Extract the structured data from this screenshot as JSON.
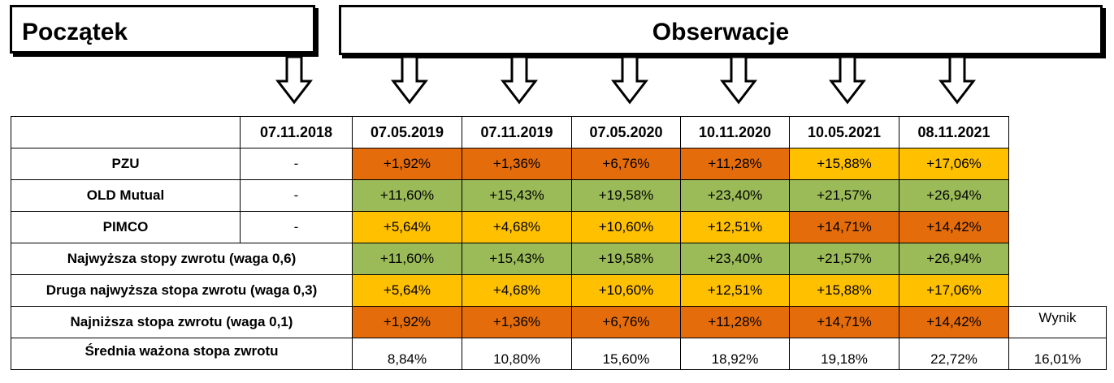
{
  "header": {
    "start_label": "Początek",
    "observations_label": "Obserwacje"
  },
  "table": {
    "columns": [
      "07.11.2018",
      "07.05.2019",
      "07.11.2019",
      "07.05.2020",
      "10.11.2020",
      "10.05.2021",
      "08.11.2021"
    ],
    "result_label": "Wynik",
    "rows": [
      {
        "label": "PZU",
        "values": [
          "-",
          "+1,92%",
          "+1,36%",
          "+6,76%",
          "+11,28%",
          "+15,88%",
          "+17,06%"
        ],
        "colors": [
          "",
          "orange",
          "orange",
          "orange",
          "orange",
          "yellow",
          "yellow"
        ]
      },
      {
        "label": "OLD Mutual",
        "values": [
          "-",
          "+11,60%",
          "+15,43%",
          "+19,58%",
          "+23,40%",
          "+21,57%",
          "+26,94%"
        ],
        "colors": [
          "",
          "green",
          "green",
          "green",
          "green",
          "green",
          "green"
        ]
      },
      {
        "label": "PIMCO",
        "values": [
          "-",
          "+5,64%",
          "+4,68%",
          "+10,60%",
          "+12,51%",
          "+14,71%",
          "+14,42%"
        ],
        "colors": [
          "",
          "yellow",
          "yellow",
          "yellow",
          "yellow",
          "orange",
          "orange"
        ]
      },
      {
        "label": "Najwyższa stopy zwrotu (waga 0,6)",
        "values": [
          "+11,60%",
          "+15,43%",
          "+19,58%",
          "+23,40%",
          "+21,57%",
          "+26,94%"
        ],
        "colors": [
          "green",
          "green",
          "green",
          "green",
          "green",
          "green"
        ]
      },
      {
        "label": "Druga najwyższa stopa zwrotu (waga 0,3)",
        "values": [
          "+5,64%",
          "+4,68%",
          "+10,60%",
          "+12,51%",
          "+15,88%",
          "+17,06%"
        ],
        "colors": [
          "yellow",
          "yellow",
          "yellow",
          "yellow",
          "yellow",
          "yellow"
        ]
      },
      {
        "label": "Najniższa stopa zwrotu (waga 0,1)",
        "values": [
          "+1,92%",
          "+1,36%",
          "+6,76%",
          "+11,28%",
          "+14,71%",
          "+14,42%"
        ],
        "colors": [
          "orange",
          "orange",
          "orange",
          "orange",
          "orange",
          "orange"
        ]
      }
    ],
    "weighted": {
      "label": "Średnia ważona stopa zwrotu",
      "values": [
        "8,84%",
        "10,80%",
        "15,60%",
        "18,92%",
        "19,18%",
        "22,72%"
      ],
      "result": "16,01%"
    }
  },
  "colors": {
    "orange": "#E46C0A",
    "green": "#9BBB59",
    "yellow": "#FFC000"
  },
  "icons": [
    "arrow-down-icon"
  ]
}
